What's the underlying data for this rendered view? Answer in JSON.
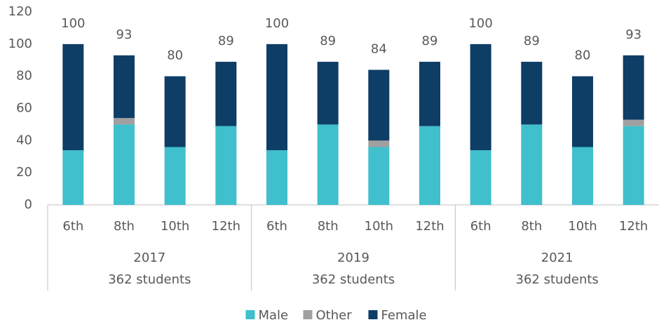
{
  "chart_data": {
    "type": "stacked-bar",
    "categories": [
      "6th",
      "8th",
      "10th",
      "12th",
      "6th",
      "8th",
      "10th",
      "12th",
      "6th",
      "8th",
      "10th",
      "12th"
    ],
    "groups": [
      {
        "name": "2017",
        "subtitle": "362 students"
      },
      {
        "name": "2019",
        "subtitle": "362 students"
      },
      {
        "name": "2021",
        "subtitle": "362 students"
      }
    ],
    "series": [
      {
        "name": "Male",
        "color": "#3fc0cc",
        "values": [
          34,
          50,
          36,
          49,
          34,
          50,
          36,
          49,
          34,
          50,
          36,
          49
        ]
      },
      {
        "name": "Other",
        "color": "#a0a0a0",
        "values": [
          0,
          4,
          0,
          0,
          0,
          0,
          4,
          0,
          0,
          0,
          0,
          4
        ]
      },
      {
        "name": "Female",
        "color": "#0e3d66",
        "values": [
          66,
          39,
          44,
          40,
          66,
          39,
          44,
          40,
          66,
          39,
          44,
          40
        ]
      }
    ],
    "totals": [
      100,
      93,
      80,
      89,
      100,
      89,
      84,
      89,
      100,
      89,
      80,
      93
    ],
    "ylim": [
      0,
      120
    ],
    "yticks": [
      0,
      20,
      40,
      60,
      80,
      100,
      120
    ],
    "grid": false,
    "legend": "bottom"
  }
}
